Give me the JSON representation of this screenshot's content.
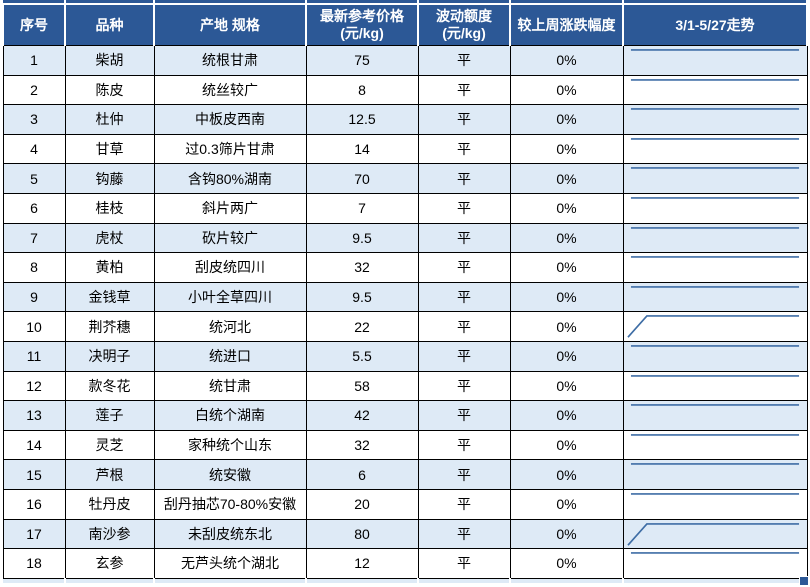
{
  "table": {
    "columns": [
      {
        "label": "序号"
      },
      {
        "label": "品种"
      },
      {
        "label": "产地 规格"
      },
      {
        "label": "最新参考价格",
        "label2": "(元/kg)"
      },
      {
        "label": "波动额度",
        "label2": "(元/kg)"
      },
      {
        "label": "较上周涨跌幅度"
      },
      {
        "label": "3/1-5/27走势"
      }
    ],
    "rows": [
      {
        "no": "1",
        "variety": "柴胡",
        "origin_spec": "统根甘肃",
        "price": "75",
        "fluctuation": "平",
        "weekly_change": "0%",
        "trend": "flat"
      },
      {
        "no": "2",
        "variety": "陈皮",
        "origin_spec": "统丝较广",
        "price": "8",
        "fluctuation": "平",
        "weekly_change": "0%",
        "trend": "flat"
      },
      {
        "no": "3",
        "variety": "杜仲",
        "origin_spec": "中板皮西南",
        "price": "12.5",
        "fluctuation": "平",
        "weekly_change": "0%",
        "trend": "flat"
      },
      {
        "no": "4",
        "variety": "甘草",
        "origin_spec": "过0.3筛片甘肃",
        "price": "14",
        "fluctuation": "平",
        "weekly_change": "0%",
        "trend": "flat"
      },
      {
        "no": "5",
        "variety": "钩藤",
        "origin_spec": "含钩80%湖南",
        "price": "70",
        "fluctuation": "平",
        "weekly_change": "0%",
        "trend": "flat"
      },
      {
        "no": "6",
        "variety": "桂枝",
        "origin_spec": "斜片两广",
        "price": "7",
        "fluctuation": "平",
        "weekly_change": "0%",
        "trend": "flat"
      },
      {
        "no": "7",
        "variety": "虎杖",
        "origin_spec": "砍片较广",
        "price": "9.5",
        "fluctuation": "平",
        "weekly_change": "0%",
        "trend": "flat"
      },
      {
        "no": "8",
        "variety": "黄柏",
        "origin_spec": "刮皮统四川",
        "price": "32",
        "fluctuation": "平",
        "weekly_change": "0%",
        "trend": "flat"
      },
      {
        "no": "9",
        "variety": "金钱草",
        "origin_spec": "小叶全草四川",
        "price": "9.5",
        "fluctuation": "平",
        "weekly_change": "0%",
        "trend": "flat"
      },
      {
        "no": "10",
        "variety": "荆芥穗",
        "origin_spec": "统河北",
        "price": "22",
        "fluctuation": "平",
        "weekly_change": "0%",
        "trend": "rise-then-flat"
      },
      {
        "no": "11",
        "variety": "决明子",
        "origin_spec": "统进口",
        "price": "5.5",
        "fluctuation": "平",
        "weekly_change": "0%",
        "trend": "flat"
      },
      {
        "no": "12",
        "variety": "款冬花",
        "origin_spec": "统甘肃",
        "price": "58",
        "fluctuation": "平",
        "weekly_change": "0%",
        "trend": "flat"
      },
      {
        "no": "13",
        "variety": "莲子",
        "origin_spec": "白统个湖南",
        "price": "42",
        "fluctuation": "平",
        "weekly_change": "0%",
        "trend": "flat"
      },
      {
        "no": "14",
        "variety": "灵芝",
        "origin_spec": "家种统个山东",
        "price": "32",
        "fluctuation": "平",
        "weekly_change": "0%",
        "trend": "flat"
      },
      {
        "no": "15",
        "variety": "芦根",
        "origin_spec": "统安徽",
        "price": "6",
        "fluctuation": "平",
        "weekly_change": "0%",
        "trend": "flat"
      },
      {
        "no": "16",
        "variety": "牡丹皮",
        "origin_spec": "刮丹抽芯70-80%安徽",
        "price": "20",
        "fluctuation": "平",
        "weekly_change": "0%",
        "trend": "flat"
      },
      {
        "no": "17",
        "variety": "南沙参",
        "origin_spec": "未刮皮统东北",
        "price": "80",
        "fluctuation": "平",
        "weekly_change": "0%",
        "trend": "rise-then-flat"
      },
      {
        "no": "18",
        "variety": "玄参",
        "origin_spec": "无芦头统个湖北",
        "price": "12",
        "fluctuation": "平",
        "weekly_change": "0%",
        "trend": "flat"
      }
    ]
  },
  "colors": {
    "header_bg": "#2C5896",
    "header_text": "#FFFFFF",
    "band_light": "#DEEAF6",
    "row_white": "#FFFFFF",
    "cell_border": "#000000",
    "gridline": "#FFFFFF",
    "sparkline": "#3E6DA5",
    "cell_text": "#000000"
  }
}
